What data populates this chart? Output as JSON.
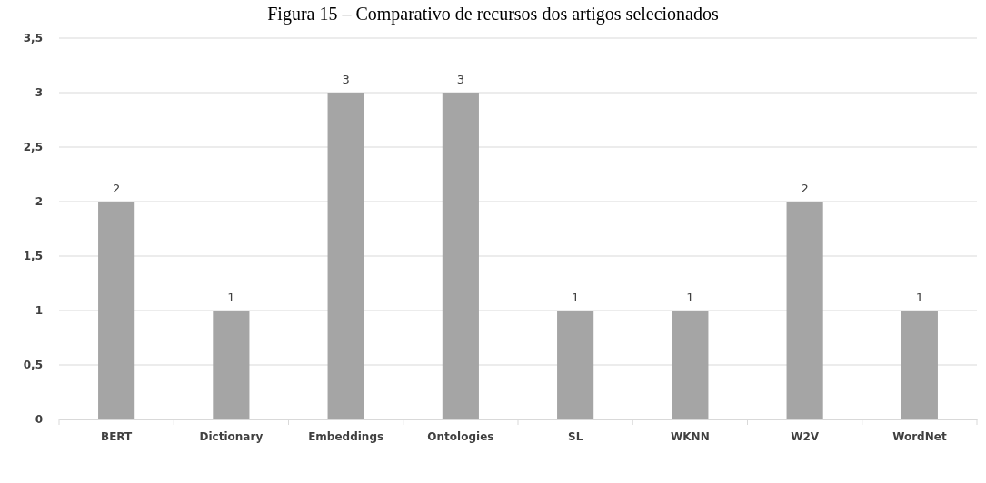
{
  "chart_data": {
    "type": "bar",
    "title": "Figura 15 – Comparativo de recursos dos artigos selecionados",
    "categories": [
      "BERT",
      "Dictionary",
      "Embeddings",
      "Ontologies",
      "SL",
      "WKNN",
      "W2V",
      "WordNet"
    ],
    "values": [
      2,
      1,
      3,
      3,
      1,
      1,
      2,
      1
    ],
    "color": "#a5a5a5",
    "ylim": [
      0,
      3.5
    ],
    "yticks": [
      0,
      {
        "value": 0.5,
        "label": "0,5"
      },
      1,
      {
        "value": 1.5,
        "label": "1,5"
      },
      2,
      {
        "value": 2.5,
        "label": "2,5"
      },
      3,
      {
        "value": 3.5,
        "label": "3,5"
      }
    ],
    "grid": "y",
    "data_labels": true
  }
}
